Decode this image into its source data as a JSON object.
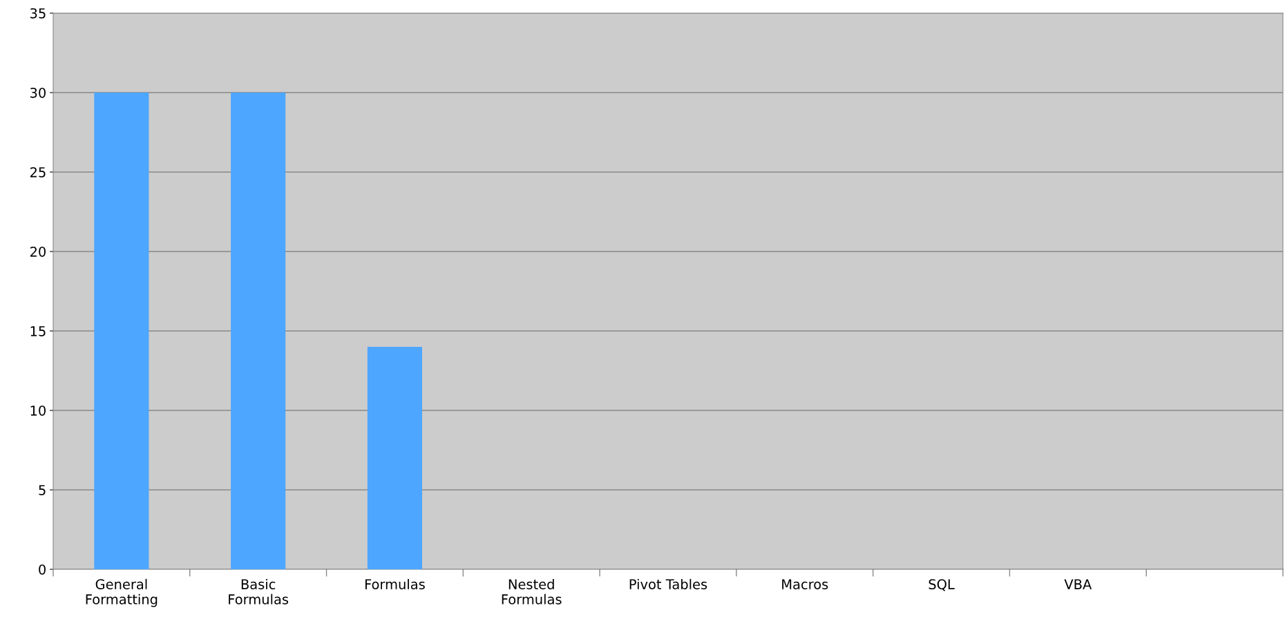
{
  "chart_data": {
    "type": "bar",
    "categories": [
      "General\nFormatting",
      "Basic\nFormulas",
      "Formulas",
      "Nested\nFormulas",
      "Pivot Tables",
      "Macros",
      "SQL",
      "VBA",
      null
    ],
    "values": [
      30,
      30,
      14,
      0,
      0,
      0,
      0,
      0,
      0
    ],
    "color": "#4da6ff",
    "ylim": [
      0,
      35
    ],
    "yticks": [
      0,
      5,
      10,
      15,
      20,
      25,
      30,
      35
    ],
    "grid": "y"
  }
}
